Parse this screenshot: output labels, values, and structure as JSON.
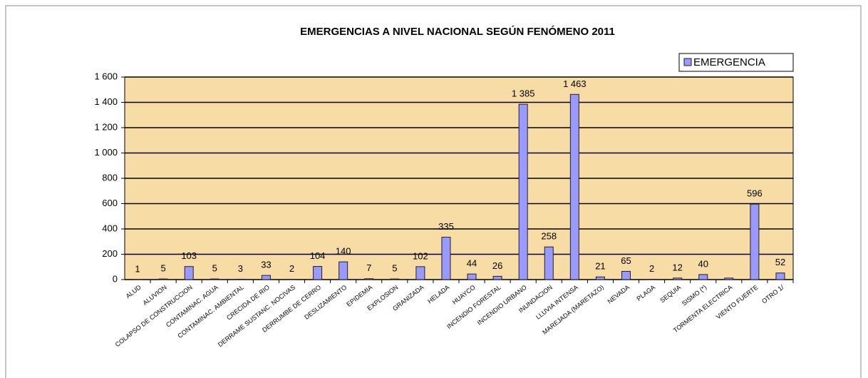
{
  "chart_data": {
    "type": "bar",
    "title": "EMERGENCIAS A NIVEL NACIONAL SEGÚN FENÓMENO 2011",
    "categories": [
      "ALUD",
      "ALUVION",
      "COLAPSO DE CONSTRUCCION",
      "CONTAMINAC. AGUA",
      "CONTAMINAC. AMBIENTAL",
      "CRECIDA DE RIO",
      "DERRAME SUSTANC. NOCIVAS",
      "DERRUMBE DE CERRO",
      "DESLIZAMIENTO",
      "EPIDEMIA",
      "EXPLOSION",
      "GRANIZADA",
      "HELADA",
      "HUAYCO",
      "INCENDIO FORESTAL",
      "INCENDIO URBANO",
      "INUNDACION",
      "LLUVIA INTENSA",
      "MAREJADA (MARETAZO)",
      "NEVADA",
      "PLAGA",
      "SEQUIA",
      "SISMO (*)",
      "TORMENTA ELECTRICA",
      "VIENTO FUERTE",
      "OTRO 1/"
    ],
    "series": [
      {
        "name": "EMERGENCIA",
        "color": "#9999ff",
        "values": [
          1,
          5,
          103,
          5,
          3,
          33,
          2,
          104,
          140,
          7,
          5,
          102,
          335,
          44,
          26,
          1385,
          258,
          1463,
          21,
          65,
          2,
          12,
          40,
          12,
          596,
          52
        ],
        "value_labels": [
          "1",
          "5",
          "103",
          "5",
          "3",
          "33",
          "2",
          "104",
          "140",
          "7",
          "5",
          "102",
          "335",
          "44",
          "26",
          "1 385",
          "258",
          "1 463",
          "21",
          "65",
          "2",
          "12",
          "40",
          null,
          "596",
          "52"
        ]
      }
    ],
    "ylim": [
      0,
      1600
    ],
    "yticks": [
      0,
      200,
      400,
      600,
      800,
      {
        "value": 1000,
        "label": "1 000"
      },
      {
        "value": 1200,
        "label": "1 200"
      },
      {
        "value": 1400,
        "label": "1 400"
      },
      {
        "value": 1600,
        "label": "1 600"
      }
    ],
    "grid": true,
    "legend": "top-right",
    "plot_background": "#f8dca6"
  }
}
